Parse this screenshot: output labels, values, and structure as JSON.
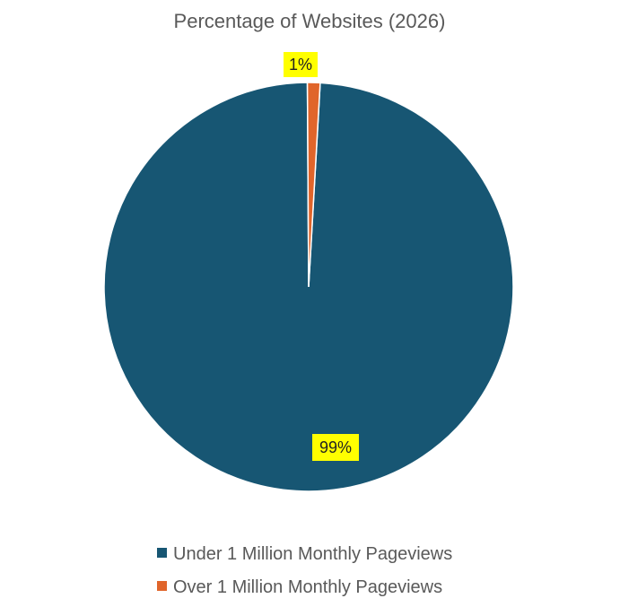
{
  "chart_data": {
    "type": "pie",
    "title": "Percentage of Websites (2026)",
    "categories": [
      "Under 1 Million Monthly Pageviews",
      "Over 1 Million Monthly Pageviews"
    ],
    "values": [
      99,
      1
    ],
    "value_labels": [
      "99%",
      "1%"
    ],
    "colors": [
      "#175673",
      "#e0652b"
    ],
    "label_highlight_color": "#ffff00",
    "legend_position": "bottom"
  }
}
